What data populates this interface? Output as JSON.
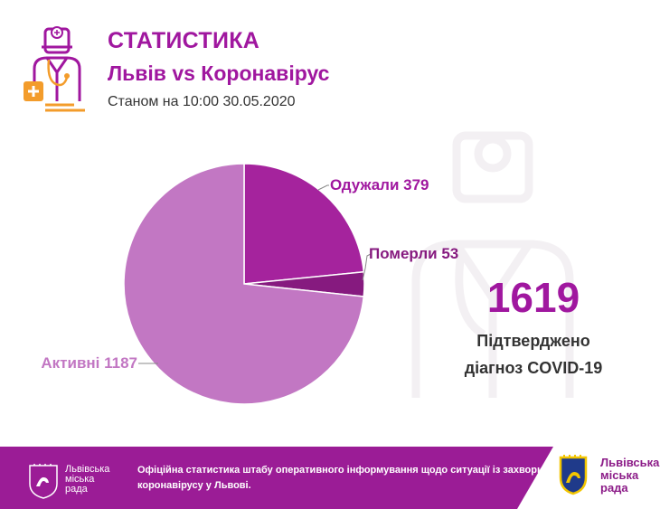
{
  "header": {
    "title": "СТАТИСТИКА",
    "subtitle": "Львів vs Коронавірус",
    "date": "Станом на 10:00 30.05.2020"
  },
  "chart_data": {
    "type": "pie",
    "slices": [
      {
        "label": "Одужали 379",
        "name": "Одужали",
        "value": 379,
        "color": "#a5239d"
      },
      {
        "label": "Померли 53",
        "name": "Померли",
        "value": 53,
        "color": "#861a7f"
      },
      {
        "label": "Активні 1187",
        "name": "Активні",
        "value": 1187,
        "color": "#c277c3"
      }
    ],
    "start": "12 o'clock",
    "direction": "clockwise"
  },
  "summary": {
    "total": "1619",
    "line1": "Підтверджено",
    "line2": "діагноз COVID-19"
  },
  "footer": {
    "org_left": "Львівська\nміська\nрада",
    "text_line1": "Офіційна статистика штабу оперативного інформування щодо ситуації із захворюванням",
    "text_line2": "коронавірусу у Львові.",
    "org_right": "Львівська\nміська\nрада"
  },
  "colors": {
    "accent": "#a0179f",
    "footer_bg": "#9b1c96",
    "icon_orange": "#f39c2b"
  }
}
